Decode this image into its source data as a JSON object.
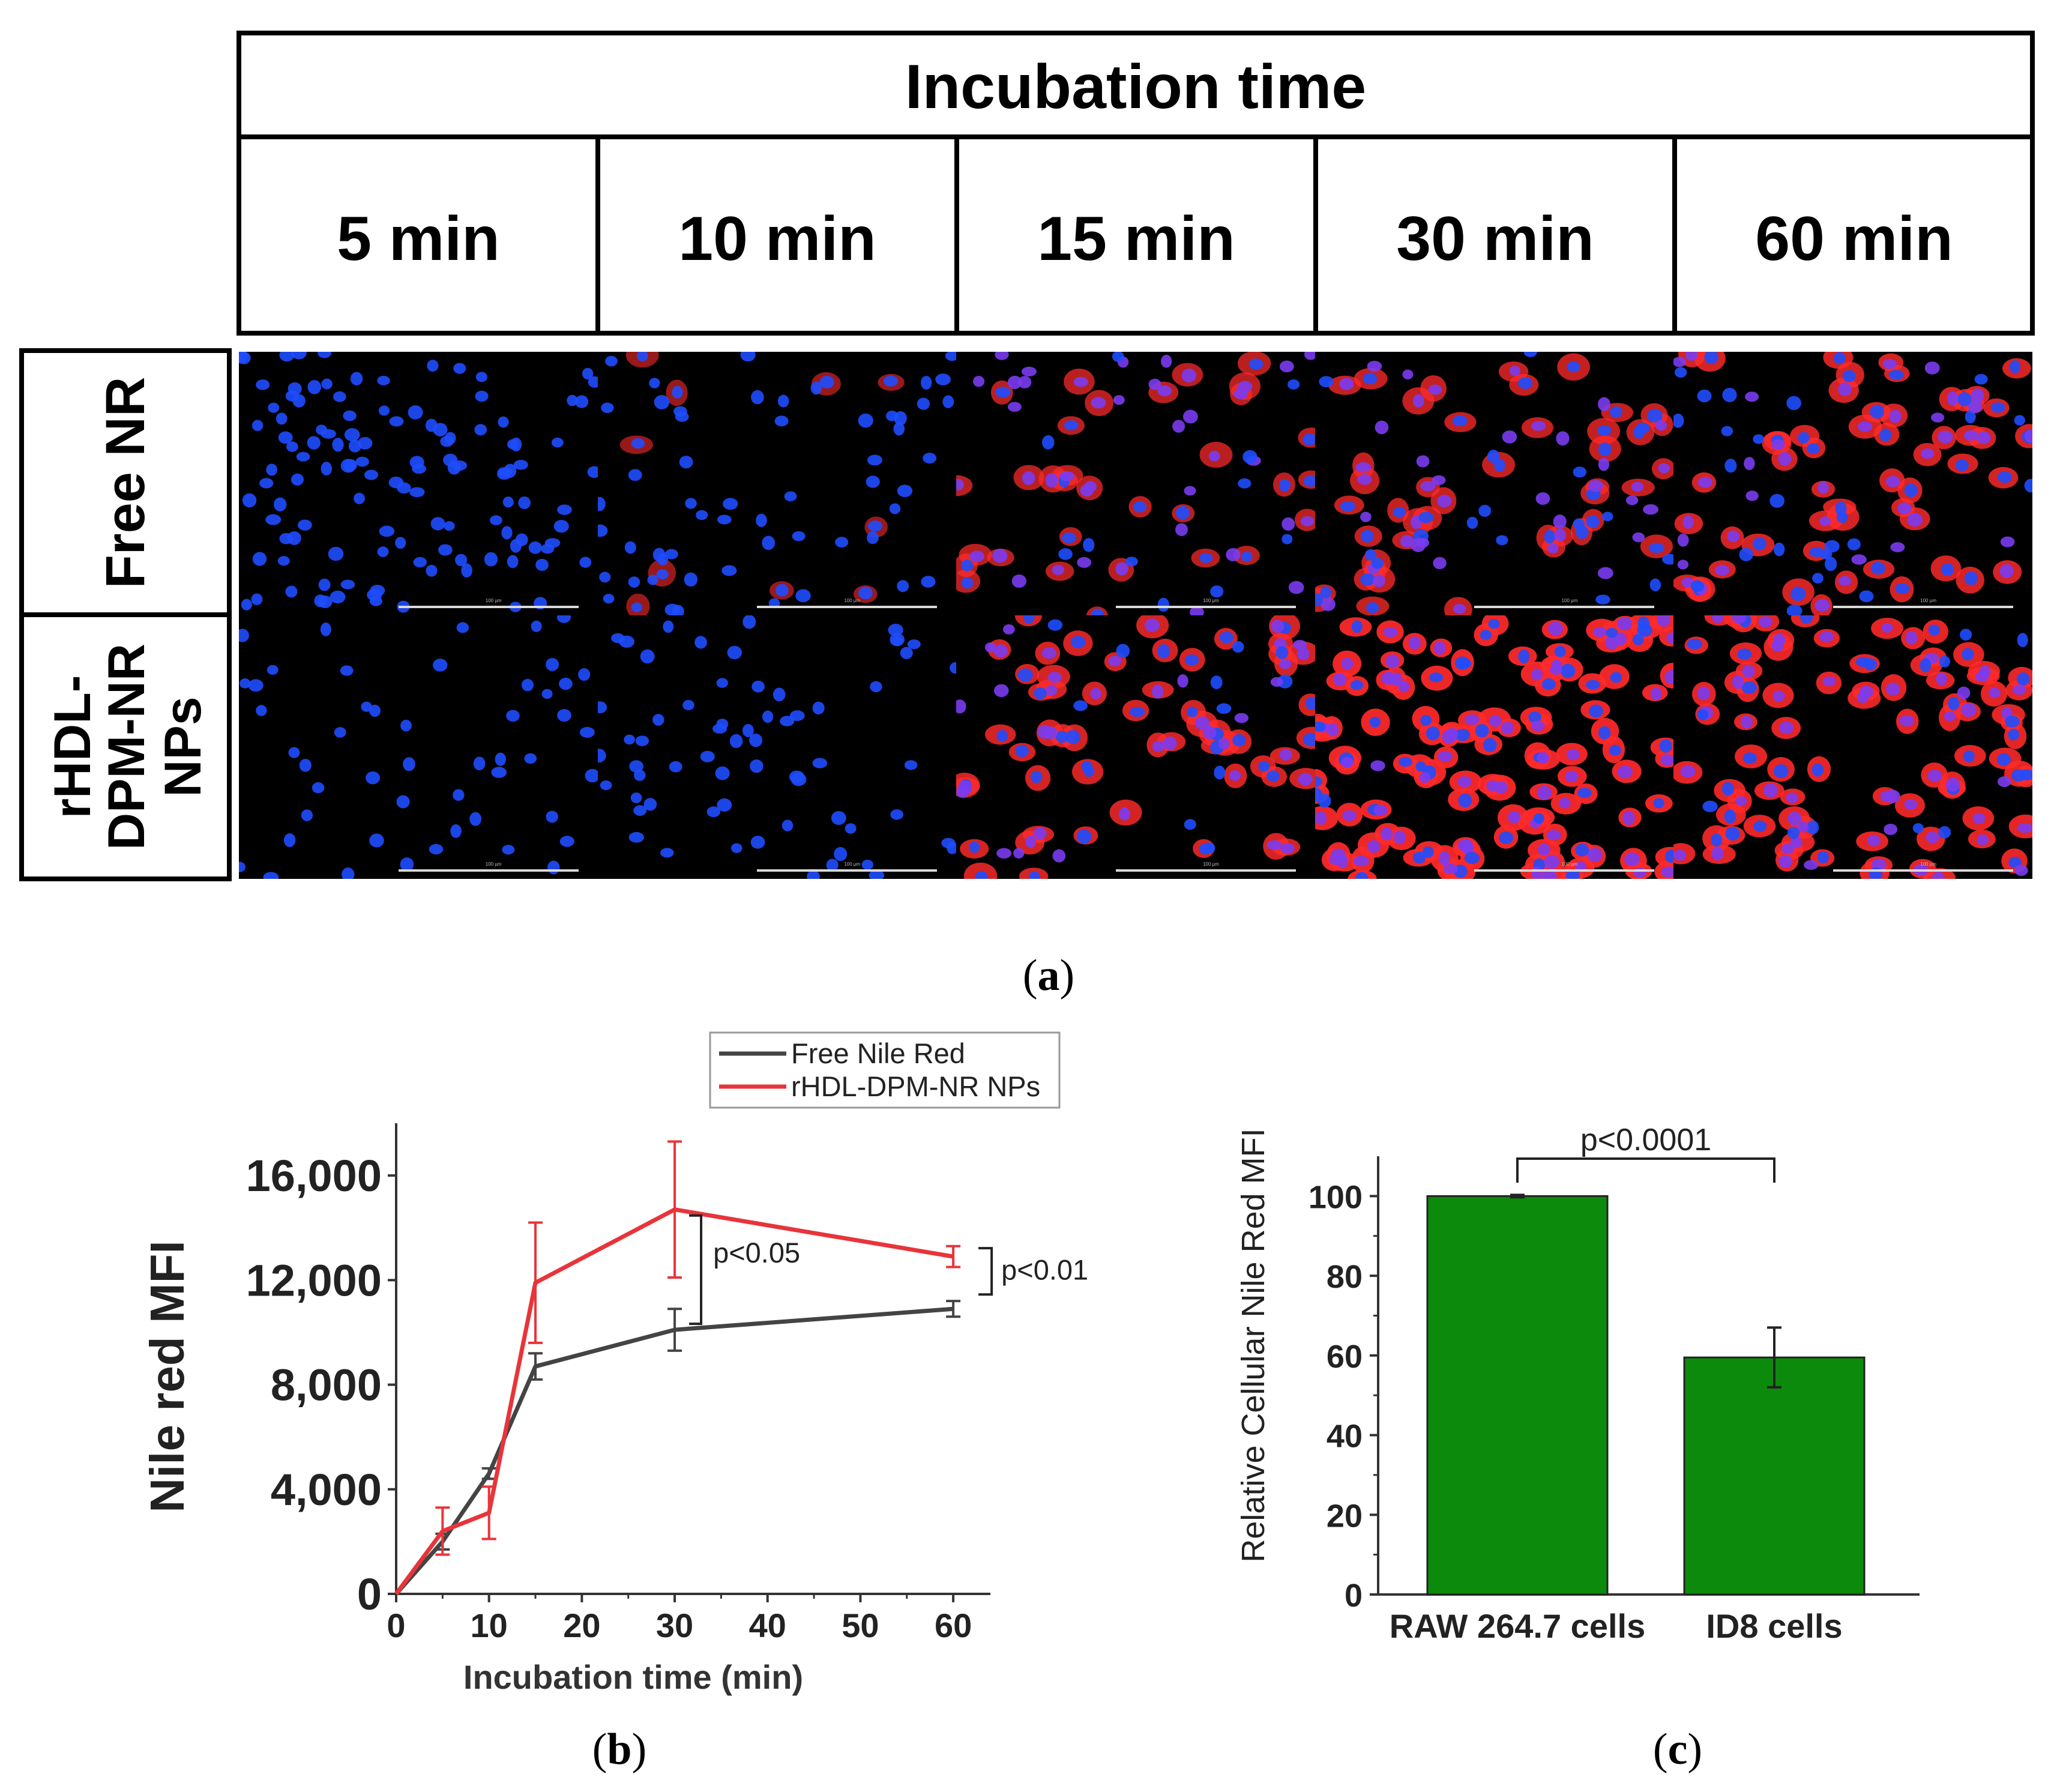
{
  "figure": {
    "header_title": "Incubation time",
    "columns": [
      "5 min",
      "10 min",
      "15 min",
      "30 min",
      "60 min"
    ],
    "rows": [
      "Free NR",
      "rHDL-DPM-NR NPs"
    ],
    "row2_line1": "rHDL-",
    "row2_line2": "DPM-NR",
    "row2_line3": "NPs",
    "scale_label": "100 µm",
    "captions": {
      "a": "a",
      "b": "b",
      "c": "c"
    },
    "colors": {
      "nucleus": "#1f4dff",
      "nile_red": "#ff2a2a",
      "background": "#000000"
    }
  },
  "chart_data": [
    {
      "type": "line",
      "panel": "b",
      "title": "",
      "xlabel": "Incubation time (min)",
      "ylabel": "Nile red MFI",
      "xlim": [
        0,
        64
      ],
      "ylim": [
        0,
        18000
      ],
      "x_ticks": [
        0,
        10,
        20,
        30,
        40,
        50,
        60
      ],
      "y_ticks": [
        0,
        4000,
        8000,
        12000,
        16000
      ],
      "y_tick_labels": [
        "0",
        "4,000",
        "8,000",
        "12,000",
        "16,000"
      ],
      "x": [
        0,
        5,
        10,
        15,
        30,
        60
      ],
      "series": [
        {
          "name": "Free Nile Red",
          "color": "#444444",
          "values": [
            0,
            2000,
            4600,
            8700,
            10100,
            10900
          ],
          "errors": [
            0,
            300,
            200,
            500,
            800,
            300
          ]
        },
        {
          "name": "rHDL-DPM-NR NPs",
          "color": "#e8343a",
          "values": [
            0,
            2400,
            3100,
            11900,
            14700,
            12900
          ],
          "errors": [
            0,
            900,
            1000,
            2300,
            2600,
            400
          ]
        }
      ],
      "annotations": [
        {
          "text": "p<0.05",
          "x": 30
        },
        {
          "text": "p<0.01",
          "x": 60
        }
      ],
      "legend": "top"
    },
    {
      "type": "bar",
      "panel": "c",
      "title": "",
      "xlabel": "",
      "ylabel": "Relative Cellular Nile Red MFI",
      "categories": [
        "RAW 264.7 cells",
        "ID8 cells"
      ],
      "values": [
        100,
        59.5
      ],
      "errors": [
        0.3,
        7.5
      ],
      "color": "#0c8a0c",
      "ylim": [
        0,
        110
      ],
      "y_ticks": [
        0,
        20,
        40,
        60,
        80,
        100
      ],
      "annotation": "p<0.0001"
    }
  ]
}
